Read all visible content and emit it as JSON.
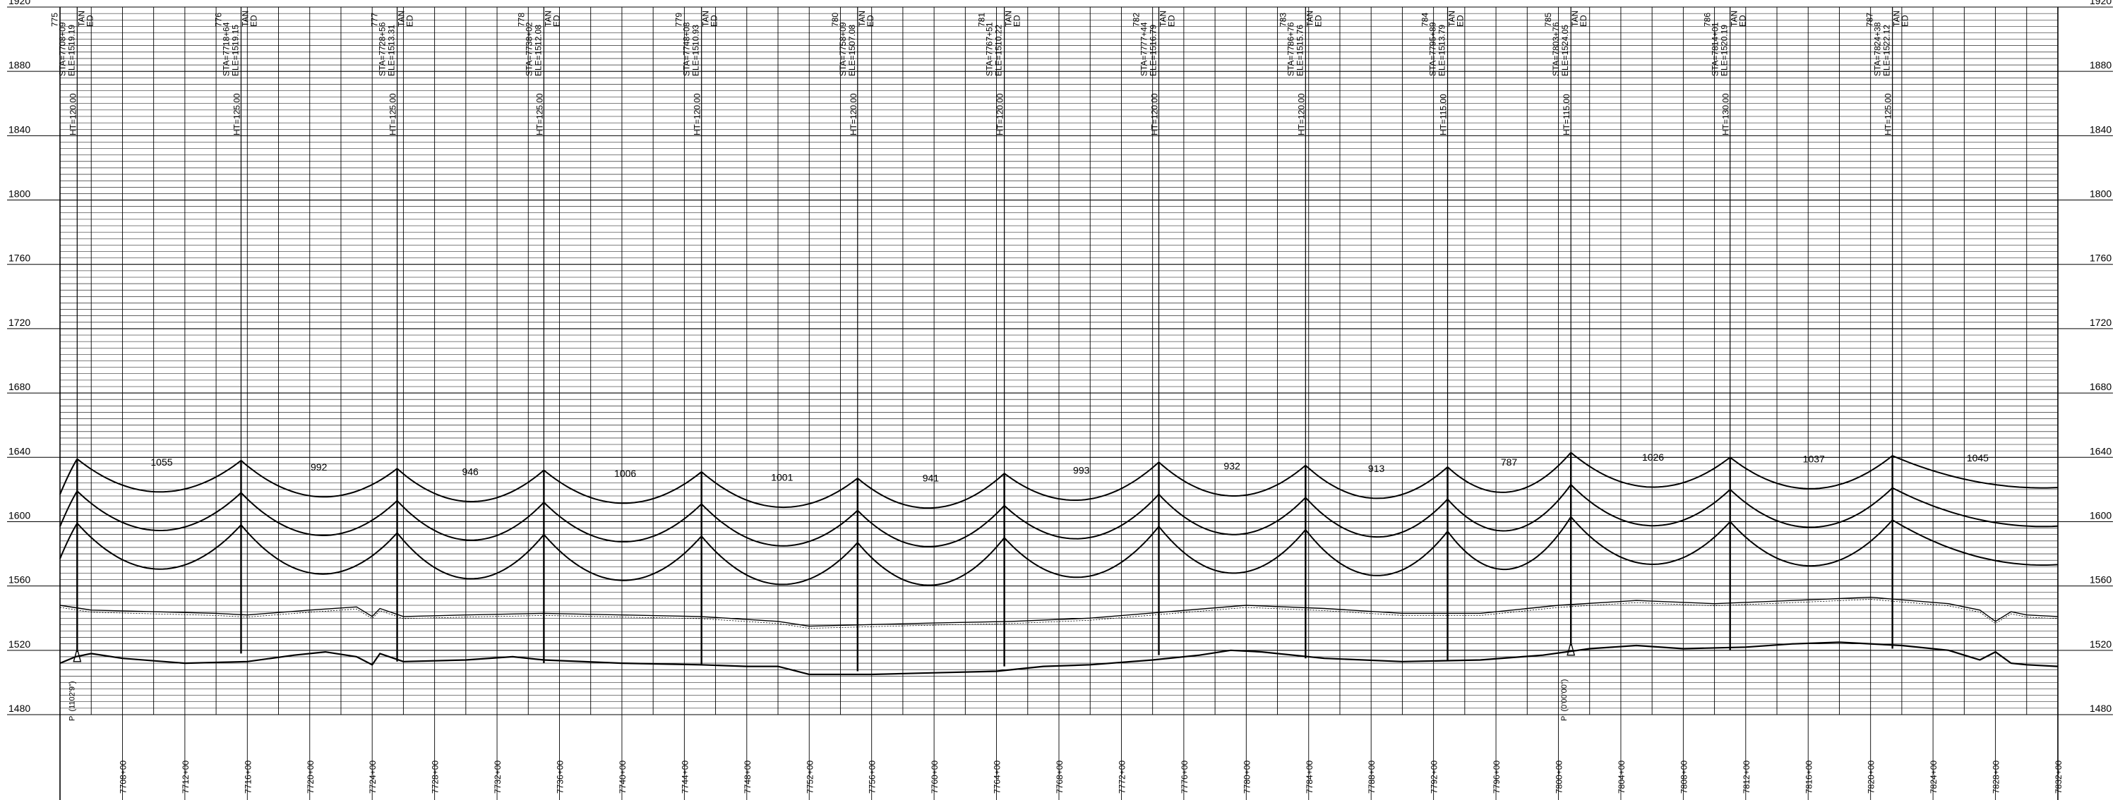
{
  "chart_data": {
    "type": "line",
    "title": "",
    "xlabel": "",
    "ylabel": "",
    "elevation_axis": {
      "ticks": [
        1920,
        1880,
        1840,
        1800,
        1760,
        1720,
        1680,
        1640,
        1600,
        1560,
        1520,
        1480
      ],
      "ylim": [
        1480,
        1920
      ]
    },
    "station_axis": {
      "xlim": [
        7704,
        7832
      ],
      "ticks": [
        "7708+00",
        "7712+00",
        "7716+00",
        "7720+00",
        "7724+00",
        "7728+00",
        "7732+00",
        "7736+00",
        "7740+00",
        "7744+00",
        "7748+00",
        "7752+00",
        "7756+00",
        "7760+00",
        "7764+00",
        "7768+00",
        "7772+00",
        "7776+00",
        "7780+00",
        "7784+00",
        "7788+00",
        "7792+00",
        "7796+00",
        "7800+00",
        "7804+00",
        "7808+00",
        "7812+00",
        "7816+00",
        "7820+00",
        "7824+00",
        "7828+00",
        "7832+00"
      ]
    },
    "structures": [
      {
        "id": "775",
        "station_label": "STA=7708+09",
        "elevation_label": "ELE=1519.19",
        "height_label": "HT=120.00",
        "type_label": "TAN",
        "suffix": "ED",
        "x": 7705.1,
        "ground": 1519
      },
      {
        "id": "776",
        "station_label": "STA=7718+64",
        "elevation_label": "ELE=1519.15",
        "height_label": "HT=125.00",
        "type_label": "TAN",
        "suffix": "ED",
        "x": 7715.6,
        "ground": 1518
      },
      {
        "id": "777",
        "station_label": "STA=7728+56",
        "elevation_label": "ELE=1513.31",
        "height_label": "HT=125.00",
        "type_label": "TAN",
        "suffix": "ED",
        "x": 7725.6,
        "ground": 1513
      },
      {
        "id": "778",
        "station_label": "STA=7738+02",
        "elevation_label": "ELE=1512.08",
        "height_label": "HT=125.00",
        "type_label": "TAN",
        "suffix": "ED",
        "x": 7735.0,
        "ground": 1512
      },
      {
        "id": "779",
        "station_label": "STA=7748+08",
        "elevation_label": "ELE=1510.93",
        "height_label": "HT=120.00",
        "type_label": "TAN",
        "suffix": "ED",
        "x": 7745.1,
        "ground": 1511
      },
      {
        "id": "780",
        "station_label": "STA=7758+09",
        "elevation_label": "ELE=1507.08",
        "height_label": "HT=120.00",
        "type_label": "TAN",
        "suffix": "ED",
        "x": 7755.1,
        "ground": 1507
      },
      {
        "id": "781",
        "station_label": "STA=7767+51",
        "elevation_label": "ELE=1510.22",
        "height_label": "HT=120.00",
        "type_label": "TAN",
        "suffix": "ED",
        "x": 7764.5,
        "ground": 1510
      },
      {
        "id": "782",
        "station_label": "STA=7777+44",
        "elevation_label": "ELE=1516.79",
        "height_label": "HT=120.00",
        "type_label": "TAN",
        "suffix": "ED",
        "x": 7774.4,
        "ground": 1517
      },
      {
        "id": "783",
        "station_label": "STA=7786+76",
        "elevation_label": "ELE=1515.76",
        "height_label": "HT=120.00",
        "type_label": "TAN",
        "suffix": "ED",
        "x": 7783.8,
        "ground": 1515
      },
      {
        "id": "784",
        "station_label": "STA=7795+89",
        "elevation_label": "ELE=1513.79",
        "height_label": "HT=115.00",
        "type_label": "TAN",
        "suffix": "ED",
        "x": 7792.9,
        "ground": 1514
      },
      {
        "id": "785",
        "station_label": "STA=7803+76",
        "elevation_label": "ELE=1524.05",
        "height_label": "HT=115.00",
        "type_label": "TAN",
        "suffix": "ED",
        "x": 7800.8,
        "ground": 1523
      },
      {
        "id": "786",
        "station_label": "STA=7814+01",
        "elevation_label": "ELE=1520.19",
        "height_label": "HT=130.00",
        "type_label": "TAN",
        "suffix": "ED",
        "x": 7811.0,
        "ground": 1520
      },
      {
        "id": "787",
        "station_label": "STA=7824+38",
        "elevation_label": "ELE=1522.12",
        "height_label": "HT=125.00",
        "type_label": "TAN",
        "suffix": "ED",
        "x": 7821.4,
        "ground": 1521
      }
    ],
    "span_lengths": [
      "1055",
      "992",
      "946",
      "1006",
      "1001",
      "941",
      "993",
      "932",
      "913",
      "787",
      "1026",
      "1037",
      "1045"
    ],
    "annotations": {
      "pi_left": "PI (1102'9\")",
      "pi_right": "PI (0'00'00\")"
    },
    "ground_profile": {
      "x": [
        7704,
        7705,
        7706,
        7708,
        7712,
        7716,
        7719,
        7721,
        7723,
        7724,
        7724.5,
        7726,
        7730,
        7733,
        7735,
        7740,
        7745,
        7748,
        7750,
        7752,
        7756,
        7760,
        7764,
        7767,
        7770,
        7774,
        7777,
        7779,
        7781,
        7785,
        7790,
        7795,
        7799,
        7802,
        7805,
        7808,
        7812,
        7815,
        7818,
        7822,
        7825,
        7827,
        7828,
        7829,
        7830,
        7832
      ],
      "y": [
        1512,
        1516,
        1518,
        1515,
        1512,
        1513,
        1517,
        1519,
        1516,
        1511,
        1518,
        1513,
        1514,
        1516,
        1514,
        1512,
        1511,
        1510,
        1510,
        1505,
        1505,
        1506,
        1507,
        1510,
        1511,
        1514,
        1517,
        1520,
        1519,
        1515,
        1513,
        1514,
        1517,
        1521,
        1523,
        1521,
        1522,
        1524,
        1525,
        1523,
        1520,
        1514,
        1519,
        1512,
        1511,
        1510
      ]
    },
    "offset_profile": {
      "x": [
        7704,
        7706,
        7710,
        7714,
        7716,
        7720,
        7723,
        7724,
        7724.5,
        7726,
        7730,
        7735,
        7740,
        7745,
        7750,
        7752,
        7756,
        7760,
        7765,
        7770,
        7775,
        7780,
        7785,
        7790,
        7795,
        7800,
        7805,
        7810,
        7815,
        7820,
        7825,
        7827,
        7828,
        7829,
        7830,
        7832
      ],
      "y": [
        1548,
        1545,
        1544,
        1543,
        1542,
        1545,
        1547,
        1541,
        1546,
        1541,
        1542,
        1543,
        1542,
        1541,
        1538,
        1535,
        1536,
        1537,
        1538,
        1540,
        1544,
        1548,
        1546,
        1543,
        1543,
        1548,
        1551,
        1549,
        1551,
        1553,
        1549,
        1545,
        1538,
        1544,
        1542,
        1541
      ]
    },
    "conductors": {
      "top_attach_offset": 120,
      "mid_attach_offset": 100,
      "low_attach_offset": 80
    }
  }
}
